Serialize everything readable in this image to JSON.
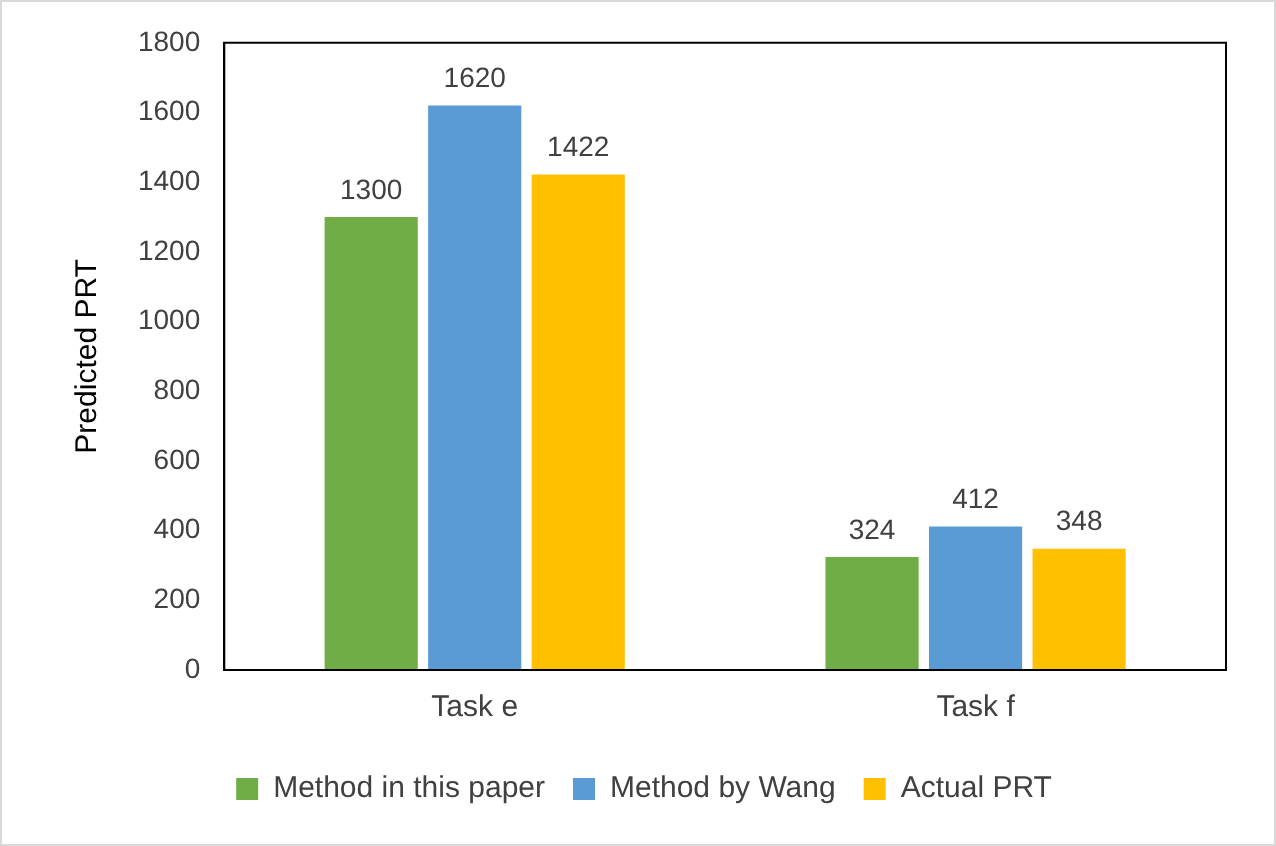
{
  "chart_data": {
    "type": "bar",
    "ylabel": "Predicted PRT",
    "categories": [
      "Task e",
      "Task f"
    ],
    "series": [
      {
        "name": "Method in this paper",
        "color": "#70ad47",
        "values": [
          1300,
          324
        ]
      },
      {
        "name": "Method by Wang",
        "color": "#5b9bd5",
        "values": [
          1620,
          412
        ]
      },
      {
        "name": "Actual PRT",
        "color": "#ffc000",
        "values": [
          1422,
          348
        ]
      }
    ],
    "ylim": [
      0,
      1800
    ],
    "yticks": [
      0,
      200,
      400,
      600,
      800,
      1000,
      1200,
      1400,
      1600,
      1800
    ],
    "grid": false,
    "legend": "bottom",
    "data_labels": true
  }
}
